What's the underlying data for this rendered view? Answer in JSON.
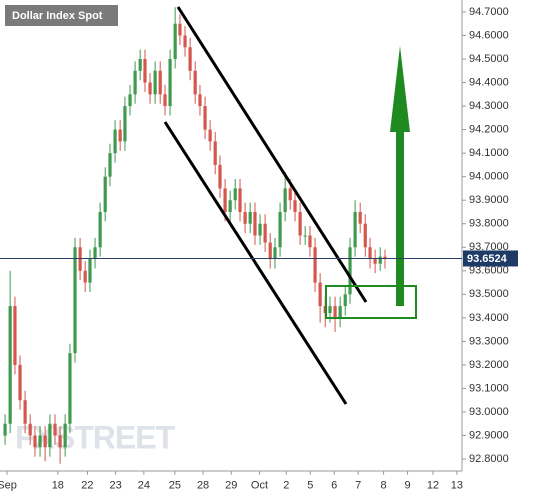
{
  "chart_data": {
    "type": "candlestick",
    "title": "Dollar Index Spot",
    "watermark": "FXSTREET",
    "x": [
      -0.07,
      0.11,
      0.28,
      0.46,
      0.64,
      0.82,
      0.99,
      1.17,
      1.35,
      1.52,
      1.7,
      1.88,
      2.06,
      2.23,
      2.41,
      2.59,
      2.77,
      2.94,
      3.12,
      3.3,
      3.48,
      3.65,
      3.83,
      4.01,
      4.18,
      4.36,
      4.54,
      4.72,
      4.89,
      5.07,
      5.25,
      5.43,
      5.6,
      5.78,
      5.96,
      6.13,
      6.31,
      6.49,
      6.67,
      6.84,
      7.02,
      7.2,
      7.38,
      7.55,
      7.73,
      7.91,
      8.09,
      8.26,
      8.44,
      8.62,
      8.79,
      8.97,
      9.15,
      9.33,
      9.5,
      9.68,
      9.86,
      10.04,
      10.21,
      10.39,
      10.57,
      10.74,
      10.92,
      11.1,
      11.28,
      11.45,
      11.63,
      11.81,
      11.99,
      12.16,
      12.34,
      12.52,
      12.7,
      12.87,
      13.05,
      13.23,
      13.4
    ],
    "open": [
      92.9,
      92.95,
      93.45,
      93.2,
      93.05,
      92.95,
      92.9,
      92.85,
      92.9,
      92.85,
      92.95,
      92.9,
      92.85,
      92.95,
      93.25,
      93.7,
      93.6,
      93.55,
      93.65,
      93.7,
      93.85,
      94.0,
      94.1,
      94.2,
      94.15,
      94.3,
      94.35,
      94.45,
      94.5,
      94.4,
      94.35,
      94.45,
      94.35,
      94.3,
      94.5,
      94.65,
      94.6,
      94.55,
      94.45,
      94.35,
      94.3,
      94.2,
      94.15,
      94.05,
      93.95,
      93.85,
      93.9,
      93.95,
      93.85,
      93.8,
      93.85,
      93.75,
      93.8,
      93.72,
      93.65,
      93.7,
      93.85,
      93.95,
      93.9,
      93.85,
      93.75,
      93.75,
      93.7,
      93.55,
      93.45,
      93.42,
      93.45,
      93.4,
      93.45,
      93.5,
      93.7,
      93.85,
      93.8,
      93.7,
      93.65,
      93.63,
      93.66
    ],
    "high": [
      92.99,
      93.6,
      93.49,
      93.24,
      93.09,
      92.99,
      92.94,
      92.94,
      92.94,
      92.99,
      92.99,
      92.94,
      92.99,
      93.29,
      93.74,
      93.74,
      93.64,
      93.69,
      93.74,
      93.89,
      94.04,
      94.14,
      94.24,
      94.24,
      94.34,
      94.39,
      94.49,
      94.54,
      94.54,
      94.44,
      94.49,
      94.49,
      94.39,
      94.54,
      94.72,
      94.69,
      94.64,
      94.59,
      94.49,
      94.39,
      94.34,
      94.24,
      94.19,
      94.09,
      93.99,
      93.94,
      93.99,
      93.99,
      93.89,
      93.89,
      93.89,
      93.84,
      93.84,
      93.76,
      93.74,
      93.89,
      94.02,
      93.99,
      93.94,
      93.89,
      93.79,
      93.79,
      93.74,
      93.59,
      93.49,
      93.49,
      93.49,
      93.49,
      93.54,
      93.74,
      93.9,
      93.89,
      93.84,
      93.74,
      93.69,
      93.7,
      93.69
    ],
    "low": [
      92.86,
      92.91,
      93.16,
      93.01,
      92.91,
      92.86,
      92.81,
      92.81,
      92.79,
      92.81,
      92.86,
      92.78,
      92.81,
      92.91,
      93.21,
      93.56,
      93.51,
      93.51,
      93.61,
      93.66,
      93.81,
      93.96,
      94.06,
      94.11,
      94.11,
      94.26,
      94.31,
      94.41,
      94.36,
      94.31,
      94.31,
      94.31,
      94.26,
      94.26,
      94.46,
      94.56,
      94.51,
      94.41,
      94.31,
      94.26,
      94.16,
      94.11,
      94.01,
      93.91,
      93.81,
      93.81,
      93.86,
      93.81,
      93.76,
      93.76,
      93.71,
      93.71,
      93.68,
      93.61,
      93.61,
      93.66,
      93.81,
      93.86,
      93.81,
      93.71,
      93.71,
      93.66,
      93.51,
      93.38,
      93.36,
      93.38,
      93.34,
      93.36,
      93.41,
      93.46,
      93.66,
      93.76,
      93.66,
      93.61,
      93.59,
      93.6,
      93.61
    ],
    "close": [
      92.95,
      93.45,
      93.2,
      93.05,
      92.95,
      92.9,
      92.85,
      92.9,
      92.85,
      92.95,
      92.9,
      92.85,
      92.95,
      93.25,
      93.7,
      93.6,
      93.55,
      93.65,
      93.7,
      93.85,
      94.0,
      94.1,
      94.2,
      94.15,
      94.3,
      94.35,
      94.45,
      94.5,
      94.4,
      94.35,
      94.45,
      94.35,
      94.3,
      94.5,
      94.65,
      94.6,
      94.55,
      94.45,
      94.35,
      94.3,
      94.2,
      94.15,
      94.05,
      93.95,
      93.85,
      93.9,
      93.95,
      93.85,
      93.8,
      93.85,
      93.75,
      93.8,
      93.72,
      93.65,
      93.7,
      93.85,
      93.95,
      93.9,
      93.85,
      93.75,
      93.75,
      93.7,
      93.55,
      93.45,
      93.42,
      93.45,
      93.4,
      93.45,
      93.5,
      93.7,
      93.85,
      93.8,
      93.7,
      93.65,
      93.63,
      93.66,
      93.65
    ],
    "up_color": "#3f9a4f",
    "down_color": "#d4564c",
    "last_price": 93.6524,
    "xlim": [
      -0.25,
      16.13
    ],
    "xticks": [
      {
        "value": 0,
        "label": "Sep"
      },
      {
        "value": 1.8,
        "label": "18"
      },
      {
        "value": 2.85,
        "label": "22"
      },
      {
        "value": 3.85,
        "label": "23"
      },
      {
        "value": 4.85,
        "label": "24"
      },
      {
        "value": 5.95,
        "label": "25"
      },
      {
        "value": 6.95,
        "label": "28"
      },
      {
        "value": 7.95,
        "label": "29"
      },
      {
        "value": 8.95,
        "label": "Oct"
      },
      {
        "value": 9.9,
        "label": "2"
      },
      {
        "value": 10.75,
        "label": "5"
      },
      {
        "value": 11.6,
        "label": "6"
      },
      {
        "value": 12.45,
        "label": "7"
      },
      {
        "value": 13.35,
        "label": "8"
      },
      {
        "value": 14.2,
        "label": "9"
      },
      {
        "value": 15.1,
        "label": "12"
      },
      {
        "value": 15.95,
        "label": "13"
      }
    ],
    "ylim": [
      92.75,
      94.75
    ],
    "yticks": [
      {
        "value": 92.8,
        "label": "92.8000"
      },
      {
        "value": 92.9,
        "label": "92.9000"
      },
      {
        "value": 93.0,
        "label": "93.0000"
      },
      {
        "value": 93.1,
        "label": "93.1000"
      },
      {
        "value": 93.2,
        "label": "93.2000"
      },
      {
        "value": 93.3,
        "label": "93.3000"
      },
      {
        "value": 93.4,
        "label": "93.4000"
      },
      {
        "value": 93.5,
        "label": "93.5000"
      },
      {
        "value": 93.6,
        "label": "93.6000"
      },
      {
        "value": 93.7,
        "label": "93.7000"
      },
      {
        "value": 93.8,
        "label": "93.8000"
      },
      {
        "value": 93.9,
        "label": "93.9000"
      },
      {
        "value": 94.0,
        "label": "94.0000"
      },
      {
        "value": 94.1,
        "label": "94.1000"
      },
      {
        "value": 94.2,
        "label": "94.2000"
      },
      {
        "value": 94.3,
        "label": "94.3000"
      },
      {
        "value": 94.4,
        "label": "94.4000"
      },
      {
        "value": 94.5,
        "label": "94.5000"
      },
      {
        "value": 94.6,
        "label": "94.6000"
      },
      {
        "value": 94.7,
        "label": "94.7000"
      }
    ]
  }
}
